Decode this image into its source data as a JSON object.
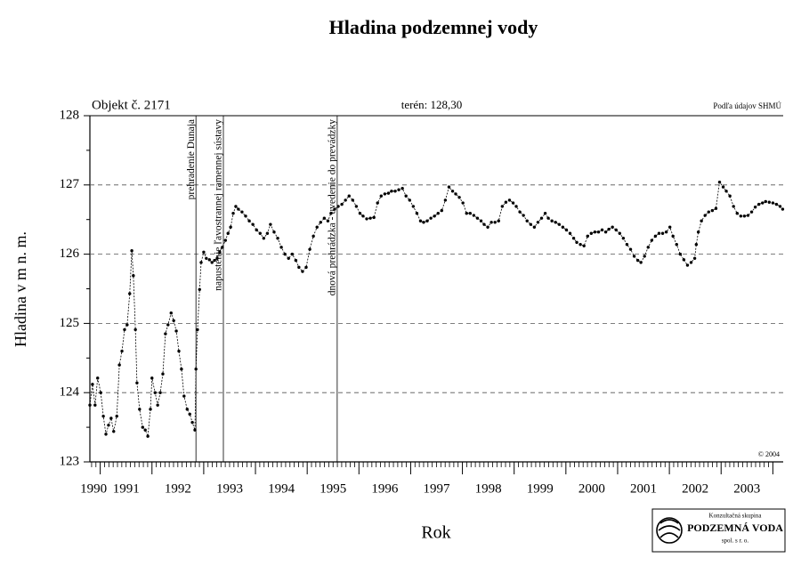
{
  "chart_data": {
    "type": "line",
    "title": "Hladina podzemnej vody",
    "object_label": "Objekt č. 2171",
    "terrain_label": "terén: 128,30",
    "source": "Podľa údajov SHMÚ",
    "copyright": "© 2004",
    "y_label": "Hladina v m n. m.",
    "x_label": "Rok",
    "xlim": [
      1990.8,
      2004.2
    ],
    "ylim": [
      123,
      128
    ],
    "yticks": [
      123,
      124,
      125,
      126,
      127,
      128
    ],
    "xticks": [
      {
        "value": 1990.87,
        "label": "1990"
      },
      {
        "value": 1991.5,
        "label": "1991"
      },
      {
        "value": 1992.5,
        "label": "1992"
      },
      {
        "value": 1993.5,
        "label": "1993"
      },
      {
        "value": 1994.5,
        "label": "1994"
      },
      {
        "value": 1995.5,
        "label": "1995"
      },
      {
        "value": 1996.5,
        "label": "1996"
      },
      {
        "value": 1997.5,
        "label": "1997"
      },
      {
        "value": 1998.5,
        "label": "1998"
      },
      {
        "value": 1999.5,
        "label": "1999"
      },
      {
        "value": 2000.5,
        "label": "2000"
      },
      {
        "value": 2001.5,
        "label": "2001"
      },
      {
        "value": 2002.5,
        "label": "2002"
      },
      {
        "value": 2003.5,
        "label": "2003"
      }
    ],
    "grid": true,
    "annotations": [
      {
        "x": 1992.85,
        "label": "prehradenie Dunaja"
      },
      {
        "x": 1993.38,
        "label": "napustenie ľavostrannej ramennej sústavy"
      },
      {
        "x": 1995.58,
        "label": "dnová prehrádzka - uvedenie do prevádzky"
      }
    ],
    "x": [
      1990.8,
      1990.85,
      1990.9,
      1990.95,
      1991.01,
      1991.06,
      1991.11,
      1991.16,
      1991.21,
      1991.26,
      1991.32,
      1991.37,
      1991.42,
      1991.47,
      1991.52,
      1991.57,
      1991.61,
      1991.64,
      1991.68,
      1991.71,
      1991.76,
      1991.82,
      1991.87,
      1991.92,
      1991.97,
      1992.0,
      1992.06,
      1992.11,
      1992.16,
      1992.21,
      1992.26,
      1992.31,
      1992.37,
      1992.42,
      1992.47,
      1992.52,
      1992.57,
      1992.62,
      1992.68,
      1992.73,
      1992.78,
      1992.83,
      1992.85,
      1992.88,
      1992.92,
      1992.95,
      1993.0,
      1993.05,
      1993.11,
      1993.16,
      1993.21,
      1993.26,
      1993.31,
      1993.36,
      1993.42,
      1993.47,
      1993.52,
      1993.57,
      1993.62,
      1993.67,
      1993.74,
      1993.81,
      1993.88,
      1993.95,
      1994.02,
      1994.09,
      1994.16,
      1994.23,
      1994.29,
      1994.36,
      1994.43,
      1994.5,
      1994.57,
      1994.64,
      1994.71,
      1994.78,
      1994.84,
      1994.91,
      1994.98,
      1995.05,
      1995.12,
      1995.19,
      1995.26,
      1995.33,
      1995.4,
      1995.46,
      1995.53,
      1995.6,
      1995.67,
      1995.74,
      1995.81,
      1995.88,
      1995.95,
      1996.02,
      1996.08,
      1996.15,
      1996.22,
      1996.29,
      1996.36,
      1996.43,
      1996.5,
      1996.57,
      1996.63,
      1996.7,
      1996.77,
      1996.84,
      1996.91,
      1996.98,
      1997.05,
      1997.12,
      1997.19,
      1997.25,
      1997.32,
      1997.39,
      1997.46,
      1997.53,
      1997.6,
      1997.67,
      1997.74,
      1997.81,
      1997.87,
      1997.94,
      1998.01,
      1998.08,
      1998.15,
      1998.22,
      1998.29,
      1998.36,
      1998.42,
      1998.49,
      1998.56,
      1998.63,
      1998.7,
      1998.77,
      1998.84,
      1998.91,
      1998.98,
      1999.04,
      1999.11,
      1999.18,
      1999.25,
      1999.32,
      1999.39,
      1999.46,
      1999.53,
      1999.6,
      1999.66,
      1999.73,
      1999.8,
      1999.87,
      1999.94,
      2000.01,
      2000.08,
      2000.15,
      2000.21,
      2000.28,
      2000.35,
      2000.42,
      2000.49,
      2000.56,
      2000.63,
      2000.7,
      2000.77,
      2000.83,
      2000.9,
      2000.97,
      2001.04,
      2001.11,
      2001.18,
      2001.25,
      2001.32,
      2001.39,
      2001.45,
      2001.52,
      2001.59,
      2001.66,
      2001.73,
      2001.8,
      2001.87,
      2001.94,
      2002.01,
      2002.07,
      2002.14,
      2002.21,
      2002.28,
      2002.35,
      2002.42,
      2002.49,
      2002.52,
      2002.56,
      2002.62,
      2002.69,
      2002.76,
      2002.83,
      2002.9,
      2002.97,
      2003.04,
      2003.1,
      2003.17,
      2003.24,
      2003.31,
      2003.38,
      2003.45,
      2003.52,
      2003.59,
      2003.66,
      2003.73,
      2003.8,
      2003.86,
      2003.93,
      2004.0,
      2004.07,
      2004.14,
      2004.19
    ],
    "series": [
      {
        "color": "#000000",
        "values": [
          123.82,
          124.12,
          123.82,
          124.21,
          124.0,
          123.66,
          123.4,
          123.53,
          123.63,
          123.44,
          123.66,
          124.4,
          124.6,
          124.91,
          124.98,
          125.43,
          126.05,
          125.69,
          124.91,
          124.14,
          123.76,
          123.5,
          123.46,
          123.37,
          123.76,
          124.21,
          124.0,
          123.82,
          124.0,
          124.27,
          124.85,
          124.98,
          125.15,
          125.04,
          124.89,
          124.6,
          124.34,
          123.95,
          123.76,
          123.69,
          123.57,
          123.46,
          124.34,
          124.91,
          125.49,
          125.88,
          126.03,
          125.94,
          125.92,
          125.88,
          125.91,
          125.94,
          126.03,
          126.1,
          126.2,
          126.3,
          126.39,
          126.59,
          126.69,
          126.65,
          126.61,
          126.55,
          126.48,
          126.43,
          126.35,
          126.3,
          126.23,
          126.3,
          126.43,
          126.32,
          126.23,
          126.1,
          126.0,
          125.94,
          126.0,
          125.91,
          125.81,
          125.75,
          125.81,
          126.07,
          126.26,
          126.39,
          126.46,
          126.52,
          126.48,
          126.59,
          126.65,
          126.69,
          126.72,
          126.78,
          126.84,
          126.78,
          126.69,
          126.59,
          126.55,
          126.51,
          126.52,
          126.53,
          126.74,
          126.84,
          126.87,
          126.88,
          126.91,
          126.91,
          126.93,
          126.95,
          126.84,
          126.78,
          126.69,
          126.59,
          126.48,
          126.46,
          126.48,
          126.52,
          126.55,
          126.59,
          126.63,
          126.78,
          126.97,
          126.91,
          126.87,
          126.82,
          126.74,
          126.59,
          126.59,
          126.56,
          126.52,
          126.48,
          126.43,
          126.39,
          126.46,
          126.46,
          126.48,
          126.69,
          126.75,
          126.78,
          126.74,
          126.69,
          126.61,
          126.56,
          126.48,
          126.43,
          126.39,
          126.46,
          126.52,
          126.59,
          126.52,
          126.48,
          126.46,
          126.43,
          126.39,
          126.35,
          126.3,
          126.23,
          126.17,
          126.14,
          126.12,
          126.26,
          126.3,
          126.32,
          126.32,
          126.35,
          126.32,
          126.36,
          126.39,
          126.35,
          126.3,
          126.23,
          126.14,
          126.07,
          125.97,
          125.91,
          125.88,
          125.97,
          126.1,
          126.2,
          126.26,
          126.3,
          126.3,
          126.32,
          126.39,
          126.26,
          126.14,
          126.0,
          125.92,
          125.84,
          125.88,
          125.94,
          126.14,
          126.32,
          126.48,
          126.56,
          126.61,
          126.63,
          126.66,
          127.04,
          126.97,
          126.91,
          126.84,
          126.69,
          126.59,
          126.55,
          126.55,
          126.56,
          126.61,
          126.68,
          126.72,
          126.74,
          126.76,
          126.75,
          126.74,
          126.72,
          126.69,
          126.65
        ]
      }
    ]
  },
  "logo": {
    "line1": "Konzultačná skupina",
    "line2": "PODZEMNÁ VODA",
    "line3": "spol. s r. o."
  }
}
